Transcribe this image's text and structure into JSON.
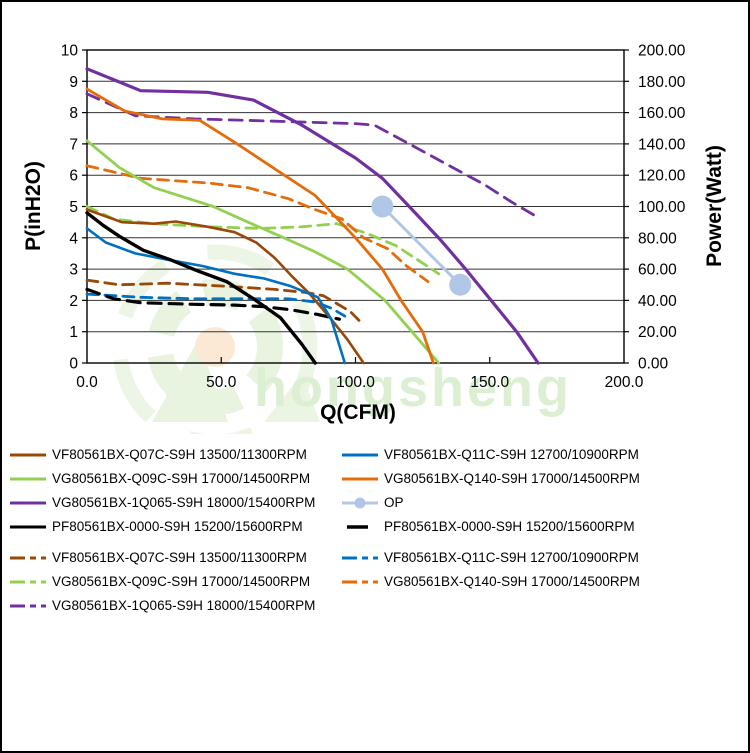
{
  "chart_data": {
    "type": "line",
    "xlabel": "Q(CFM)",
    "ylabel_left": "P(inH2O)",
    "ylabel_right": "Power(Watt)",
    "x_range": [
      0,
      200
    ],
    "y_left_range": [
      0,
      10
    ],
    "y_right_range": [
      0,
      200
    ],
    "x_ticks": [
      "0.0",
      "50.0",
      "100.0",
      "150.0",
      "200.0"
    ],
    "y_left_ticks": [
      "10",
      "9",
      "8",
      "7",
      "6",
      "5",
      "4",
      "3",
      "2",
      "1",
      "0"
    ],
    "y_right_ticks": [
      "200.00",
      "180.00",
      "160.00",
      "140.00",
      "120.00",
      "100.00",
      "80.00",
      "60.00",
      "40.00",
      "20.00",
      "0.00"
    ],
    "grid": "horizontal",
    "legend_position": "bottom",
    "series": [
      {
        "name": "VF80561BX-Q07C-S9H 13500/11300RPM",
        "kind": "static-pressure",
        "axis": "P",
        "color": "#984807",
        "dash": "none",
        "width": 2.6,
        "legend": "solid",
        "points": [
          [
            0,
            4.9
          ],
          [
            13,
            4.5
          ],
          [
            25,
            4.45
          ],
          [
            33,
            4.52
          ],
          [
            45,
            4.35
          ],
          [
            55,
            4.18
          ],
          [
            63,
            3.85
          ],
          [
            70,
            3.35
          ],
          [
            76,
            2.8
          ],
          [
            83,
            2.2
          ],
          [
            90,
            1.5
          ],
          [
            97,
            0.75
          ],
          [
            103,
            0
          ]
        ]
      },
      {
        "name": "VF80561BX-Q11C-S9H 12700/10900RPM",
        "kind": "static-pressure",
        "axis": "P",
        "color": "#0070C0",
        "dash": "none",
        "width": 2.6,
        "legend": "solid",
        "points": [
          [
            0,
            4.3
          ],
          [
            7,
            3.85
          ],
          [
            18,
            3.5
          ],
          [
            30,
            3.3
          ],
          [
            43,
            3.1
          ],
          [
            55,
            2.85
          ],
          [
            66,
            2.7
          ],
          [
            76,
            2.45
          ],
          [
            86,
            2.1
          ],
          [
            91,
            1.4
          ],
          [
            96,
            0
          ]
        ]
      },
      {
        "name": "VG80561BX-Q09C-S9H 17000/14500RPM",
        "kind": "static-pressure",
        "axis": "P",
        "color": "#92D050",
        "dash": "none",
        "width": 2.8,
        "legend": "solid",
        "points": [
          [
            0,
            7.1
          ],
          [
            12,
            6.25
          ],
          [
            25,
            5.6
          ],
          [
            36,
            5.3
          ],
          [
            47,
            5.0
          ],
          [
            60,
            4.5
          ],
          [
            72,
            4.05
          ],
          [
            85,
            3.55
          ],
          [
            97,
            3.0
          ],
          [
            111,
            2.0
          ],
          [
            121,
            1.0
          ],
          [
            131,
            0
          ]
        ]
      },
      {
        "name": "VG80561BX-Q140-S9H 17000/14500RPM",
        "kind": "static-pressure",
        "axis": "P",
        "color": "#E46C0A",
        "dash": "none",
        "width": 2.8,
        "legend": "solid",
        "points": [
          [
            0,
            8.75
          ],
          [
            14,
            8.05
          ],
          [
            28,
            7.8
          ],
          [
            42,
            7.75
          ],
          [
            55,
            7.05
          ],
          [
            70,
            6.2
          ],
          [
            85,
            5.35
          ],
          [
            100,
            4.0
          ],
          [
            110,
            3.0
          ],
          [
            117,
            2.0
          ],
          [
            125,
            1.0
          ],
          [
            129,
            0
          ]
        ]
      },
      {
        "name": "VG80561BX-1Q065-S9H 18000/15400RPM",
        "kind": "static-pressure",
        "axis": "P",
        "color": "#7030A0",
        "dash": "none",
        "width": 3.2,
        "legend": "solid",
        "points": [
          [
            0,
            9.4
          ],
          [
            20,
            8.7
          ],
          [
            45,
            8.65
          ],
          [
            62,
            8.4
          ],
          [
            80,
            7.6
          ],
          [
            100,
            6.55
          ],
          [
            110,
            5.9
          ],
          [
            120,
            5.0
          ],
          [
            132,
            3.9
          ],
          [
            141,
            3.0
          ],
          [
            150,
            2.05
          ],
          [
            160,
            1.0
          ],
          [
            168,
            0
          ]
        ]
      },
      {
        "name": "PF80561BX-0000-S9H 15200/15600RPM",
        "kind": "static-pressure",
        "axis": "P",
        "color": "#000000",
        "dash": "none",
        "width": 3.4,
        "legend": "solid",
        "points": [
          [
            0,
            4.8
          ],
          [
            6,
            4.4
          ],
          [
            12,
            4.05
          ],
          [
            21,
            3.6
          ],
          [
            31,
            3.3
          ],
          [
            41,
            2.95
          ],
          [
            52,
            2.6
          ],
          [
            62,
            2.05
          ],
          [
            72,
            1.45
          ],
          [
            80,
            0.6
          ],
          [
            85,
            0
          ]
        ]
      },
      {
        "name": "VF80561BX-Q07C-S9H 13500/11300RPM",
        "kind": "power",
        "axis": "W",
        "color": "#984807",
        "dash": "11 7",
        "width": 2.8,
        "legend": "dashed",
        "points": [
          [
            0,
            53
          ],
          [
            12,
            50
          ],
          [
            30,
            51
          ],
          [
            52,
            49
          ],
          [
            70,
            47
          ],
          [
            82,
            45
          ],
          [
            88,
            43
          ],
          [
            93,
            38
          ],
          [
            98,
            33
          ],
          [
            102,
            26
          ]
        ]
      },
      {
        "name": "VF80561BX-Q11C-S9H 12700/10900RPM",
        "kind": "power",
        "axis": "W",
        "color": "#0070C0",
        "dash": "11 7",
        "width": 2.8,
        "legend": "dashed",
        "points": [
          [
            0,
            44
          ],
          [
            20,
            42
          ],
          [
            40,
            41
          ],
          [
            60,
            41
          ],
          [
            75,
            41
          ],
          [
            85,
            39
          ],
          [
            91,
            35
          ],
          [
            96,
            30
          ]
        ]
      },
      {
        "name": "VG80561BX-Q09C-S9H 17000/14500RPM",
        "kind": "power",
        "axis": "W",
        "color": "#92D050",
        "dash": "11 7",
        "width": 2.8,
        "legend": "dashed",
        "points": [
          [
            0,
            100
          ],
          [
            10,
            92
          ],
          [
            25,
            89
          ],
          [
            45,
            87
          ],
          [
            65,
            86
          ],
          [
            80,
            87
          ],
          [
            93,
            89
          ],
          [
            104,
            83
          ],
          [
            115,
            75
          ],
          [
            124,
            65
          ],
          [
            131,
            57
          ]
        ]
      },
      {
        "name": "VG80561BX-Q140-S9H 17000/14500RPM",
        "kind": "power",
        "axis": "W",
        "color": "#E46C0A",
        "dash": "11 7",
        "width": 2.8,
        "legend": "dashed",
        "points": [
          [
            0,
            126
          ],
          [
            20,
            118
          ],
          [
            45,
            115
          ],
          [
            60,
            112
          ],
          [
            75,
            105
          ],
          [
            85,
            98
          ],
          [
            95,
            92
          ],
          [
            103,
            80
          ],
          [
            112,
            73
          ],
          [
            119,
            62
          ],
          [
            127,
            52
          ]
        ]
      },
      {
        "name": "VG80561BX-1Q065-S9H 18000/15400RPM",
        "kind": "power",
        "axis": "W",
        "color": "#7030A0",
        "dash": "13 8",
        "width": 2.8,
        "legend": "dashed",
        "points": [
          [
            0,
            172
          ],
          [
            18,
            158
          ],
          [
            40,
            156
          ],
          [
            60,
            155
          ],
          [
            80,
            154
          ],
          [
            100,
            153
          ],
          [
            107,
            152
          ],
          [
            120,
            140
          ],
          [
            135,
            126
          ],
          [
            148,
            114
          ],
          [
            158,
            103
          ],
          [
            167,
            94
          ]
        ]
      },
      {
        "name": "PF80561BX-0000-S9H 15200/15600RPM",
        "kind": "power",
        "axis": "W",
        "color": "#000000",
        "dash": "13 8",
        "width": 3.2,
        "legend": "short-dash",
        "points": [
          [
            0,
            47
          ],
          [
            10,
            41
          ],
          [
            20,
            38.5
          ],
          [
            40,
            37.5
          ],
          [
            55,
            37
          ],
          [
            66,
            36
          ],
          [
            76,
            34
          ],
          [
            86,
            31
          ],
          [
            94,
            28
          ]
        ]
      },
      {
        "name": "OP",
        "kind": "operating-points",
        "axis": "W",
        "color": "#B0C7E8",
        "dash": "none",
        "width": 3,
        "legend": "op",
        "marker_radius": 11,
        "points": [
          [
            110,
            100
          ],
          [
            139,
            50
          ]
        ]
      }
    ]
  },
  "legend": {
    "rows": [
      [
        0,
        1
      ],
      [
        2,
        3
      ],
      [
        4,
        12
      ],
      [
        5,
        11
      ],
      [
        6,
        7
      ],
      [
        8,
        9
      ],
      [
        10,
        null
      ]
    ],
    "gap_before_row": 4
  },
  "watermark": {
    "text": "hongsheng",
    "text_color": "#DCEFD2",
    "leaf_color": "#E8F4E0",
    "dot_color": "#FBE9D6"
  }
}
